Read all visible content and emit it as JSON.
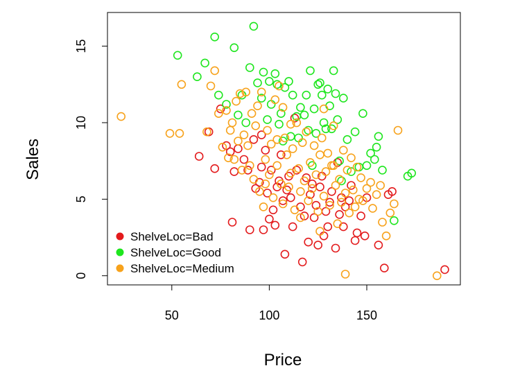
{
  "chart_data": {
    "type": "scatter",
    "title": "",
    "xlabel": "Price",
    "ylabel": "Sales",
    "xlim": [
      17,
      198
    ],
    "ylim": [
      -0.6,
      17.2
    ],
    "xticks": [
      50,
      100,
      150
    ],
    "yticks": [
      0,
      5,
      10,
      15
    ],
    "xtick_labels": [
      "50",
      "100",
      "150"
    ],
    "ytick_labels": [
      "0",
      "5",
      "10",
      "15"
    ],
    "grid": false,
    "marker": "open-circle",
    "legend_position": "bottom-left",
    "series": [
      {
        "name": "ShelveLoc=Bad",
        "color": "#e31a1c",
        "points": [
          [
            64,
            7.8
          ],
          [
            69,
            9.4
          ],
          [
            72,
            7.0
          ],
          [
            75,
            10.9
          ],
          [
            78,
            8.5
          ],
          [
            80,
            8.1
          ],
          [
            81,
            3.5
          ],
          [
            82,
            6.8
          ],
          [
            84,
            8.3
          ],
          [
            87,
            7.6
          ],
          [
            89,
            6.9
          ],
          [
            90,
            3.0
          ],
          [
            92,
            8.9
          ],
          [
            93,
            5.7
          ],
          [
            95,
            6.1
          ],
          [
            96,
            7.1
          ],
          [
            97,
            3.0
          ],
          [
            98,
            8.2
          ],
          [
            99,
            5.4
          ],
          [
            100,
            3.7
          ],
          [
            101,
            6.9
          ],
          [
            103,
            3.3
          ],
          [
            104,
            5.8
          ],
          [
            105,
            6.2
          ],
          [
            106,
            7.9
          ],
          [
            107,
            4.9
          ],
          [
            108,
            1.4
          ],
          [
            109,
            5.6
          ],
          [
            110,
            6.5
          ],
          [
            111,
            5.1
          ],
          [
            112,
            3.2
          ],
          [
            113,
            10.3
          ],
          [
            114,
            6.9
          ],
          [
            116,
            4.5
          ],
          [
            117,
            0.9
          ],
          [
            118,
            3.9
          ],
          [
            120,
            2.2
          ],
          [
            121,
            5.3
          ],
          [
            122,
            6.0
          ],
          [
            124,
            4.6
          ],
          [
            125,
            2.0
          ],
          [
            126,
            5.8
          ],
          [
            127,
            6.5
          ],
          [
            128,
            2.6
          ],
          [
            129,
            4.2
          ],
          [
            130,
            3.2
          ],
          [
            131,
            4.8
          ],
          [
            132,
            5.5
          ],
          [
            134,
            1.8
          ],
          [
            136,
            4.0
          ],
          [
            137,
            5.1
          ],
          [
            138,
            3.2
          ],
          [
            139,
            4.5
          ],
          [
            141,
            4.9
          ],
          [
            142,
            5.9
          ],
          [
            144,
            2.3
          ],
          [
            145,
            2.8
          ],
          [
            147,
            3.9
          ],
          [
            149,
            2.6
          ],
          [
            150,
            5.1
          ],
          [
            156,
            2.0
          ],
          [
            159,
            0.5
          ],
          [
            161,
            5.3
          ],
          [
            163,
            5.5
          ],
          [
            190,
            0.4
          ],
          [
            96,
            9.2
          ],
          [
            102,
            4.3
          ],
          [
            119,
            6.4
          ],
          [
            123,
            3.8
          ],
          [
            135,
            7.4
          ]
        ]
      },
      {
        "name": "ShelveLoc=Good",
        "color": "#1ee61e",
        "points": [
          [
            53,
            14.4
          ],
          [
            63,
            13.0
          ],
          [
            67,
            13.9
          ],
          [
            72,
            15.6
          ],
          [
            74,
            11.8
          ],
          [
            78,
            11.2
          ],
          [
            82,
            14.9
          ],
          [
            84,
            10.5
          ],
          [
            86,
            11.8
          ],
          [
            88,
            10.0
          ],
          [
            90,
            13.6
          ],
          [
            92,
            16.3
          ],
          [
            94,
            12.6
          ],
          [
            96,
            11.6
          ],
          [
            97,
            13.3
          ],
          [
            99,
            10.2
          ],
          [
            100,
            12.7
          ],
          [
            101,
            11.2
          ],
          [
            103,
            13.2
          ],
          [
            104,
            12.5
          ],
          [
            105,
            9.9
          ],
          [
            106,
            10.6
          ],
          [
            108,
            12.3
          ],
          [
            110,
            12.7
          ],
          [
            111,
            9.1
          ],
          [
            112,
            11.8
          ],
          [
            114,
            10.4
          ],
          [
            116,
            11.0
          ],
          [
            118,
            10.5
          ],
          [
            119,
            11.8
          ],
          [
            120,
            9.5
          ],
          [
            121,
            13.4
          ],
          [
            123,
            10.9
          ],
          [
            124,
            9.3
          ],
          [
            125,
            12.5
          ],
          [
            126,
            12.6
          ],
          [
            127,
            11.8
          ],
          [
            128,
            10.0
          ],
          [
            129,
            9.6
          ],
          [
            130,
            12.2
          ],
          [
            131,
            11.1
          ],
          [
            132,
            9.6
          ],
          [
            133,
            13.4
          ],
          [
            134,
            11.9
          ],
          [
            135,
            10.2
          ],
          [
            136,
            7.5
          ],
          [
            137,
            6.2
          ],
          [
            138,
            11.6
          ],
          [
            140,
            8.9
          ],
          [
            142,
            6.8
          ],
          [
            144,
            9.4
          ],
          [
            146,
            7.1
          ],
          [
            148,
            10.6
          ],
          [
            150,
            7.2
          ],
          [
            152,
            8.0
          ],
          [
            154,
            7.6
          ],
          [
            155,
            8.4
          ],
          [
            156,
            9.1
          ],
          [
            158,
            6.9
          ],
          [
            171,
            6.5
          ],
          [
            173,
            6.7
          ],
          [
            164,
            3.6
          ],
          [
            107,
            8.8
          ],
          [
            122,
            7.2
          ],
          [
            115,
            9.0
          ]
        ]
      },
      {
        "name": "ShelveLoc=Medium",
        "color": "#f7a21b",
        "points": [
          [
            24,
            10.4
          ],
          [
            49,
            9.3
          ],
          [
            54,
            9.3
          ],
          [
            55,
            12.5
          ],
          [
            68,
            9.4
          ],
          [
            70,
            12.4
          ],
          [
            72,
            13.4
          ],
          [
            74,
            10.6
          ],
          [
            76,
            8.4
          ],
          [
            78,
            10.8
          ],
          [
            79,
            7.7
          ],
          [
            80,
            9.5
          ],
          [
            81,
            10.0
          ],
          [
            82,
            7.6
          ],
          [
            83,
            11.4
          ],
          [
            84,
            8.8
          ],
          [
            85,
            11.9
          ],
          [
            86,
            6.9
          ],
          [
            87,
            9.2
          ],
          [
            88,
            12.0
          ],
          [
            89,
            8.5
          ],
          [
            90,
            7.2
          ],
          [
            91,
            10.6
          ],
          [
            92,
            6.3
          ],
          [
            93,
            9.8
          ],
          [
            94,
            11.1
          ],
          [
            95,
            5.5
          ],
          [
            96,
            12.0
          ],
          [
            97,
            4.5
          ],
          [
            98,
            7.6
          ],
          [
            99,
            9.5
          ],
          [
            100,
            6.6
          ],
          [
            101,
            8.6
          ],
          [
            102,
            5.1
          ],
          [
            103,
            11.5
          ],
          [
            104,
            7.2
          ],
          [
            105,
            12.4
          ],
          [
            106,
            6.0
          ],
          [
            107,
            4.7
          ],
          [
            108,
            9.0
          ],
          [
            109,
            7.9
          ],
          [
            110,
            5.8
          ],
          [
            111,
            6.7
          ],
          [
            112,
            8.3
          ],
          [
            113,
            4.3
          ],
          [
            114,
            10.0
          ],
          [
            115,
            7.0
          ],
          [
            116,
            5.5
          ],
          [
            117,
            8.7
          ],
          [
            118,
            6.2
          ],
          [
            119,
            9.4
          ],
          [
            120,
            4.9
          ],
          [
            121,
            7.4
          ],
          [
            122,
            5.7
          ],
          [
            123,
            8.5
          ],
          [
            124,
            6.6
          ],
          [
            125,
            4.2
          ],
          [
            126,
            7.9
          ],
          [
            127,
            9.0
          ],
          [
            128,
            5.2
          ],
          [
            129,
            6.8
          ],
          [
            130,
            8.0
          ],
          [
            131,
            4.6
          ],
          [
            132,
            7.2
          ],
          [
            133,
            9.8
          ],
          [
            134,
            5.9
          ],
          [
            135,
            3.4
          ],
          [
            136,
            6.3
          ],
          [
            137,
            4.8
          ],
          [
            138,
            8.2
          ],
          [
            139,
            5.4
          ],
          [
            140,
            6.9
          ],
          [
            141,
            4.1
          ],
          [
            142,
            7.7
          ],
          [
            143,
            5.6
          ],
          [
            144,
            4.5
          ],
          [
            145,
            7.1
          ],
          [
            146,
            5.0
          ],
          [
            147,
            6.4
          ],
          [
            148,
            4.9
          ],
          [
            150,
            5.7
          ],
          [
            152,
            6.1
          ],
          [
            153,
            4.4
          ],
          [
            155,
            5.3
          ],
          [
            157,
            5.9
          ],
          [
            158,
            3.5
          ],
          [
            160,
            2.6
          ],
          [
            162,
            4.1
          ],
          [
            164,
            4.7
          ],
          [
            166,
            9.5
          ],
          [
            139,
            0.1
          ],
          [
            186,
            0.0
          ],
          [
            98,
            6.0
          ],
          [
            104,
            8.9
          ],
          [
            111,
            9.9
          ],
          [
            116,
            3.8
          ],
          [
            128,
            10.9
          ],
          [
            133,
            7.2
          ],
          [
            126,
            2.9
          ],
          [
            107,
            11.0
          ]
        ]
      }
    ]
  }
}
